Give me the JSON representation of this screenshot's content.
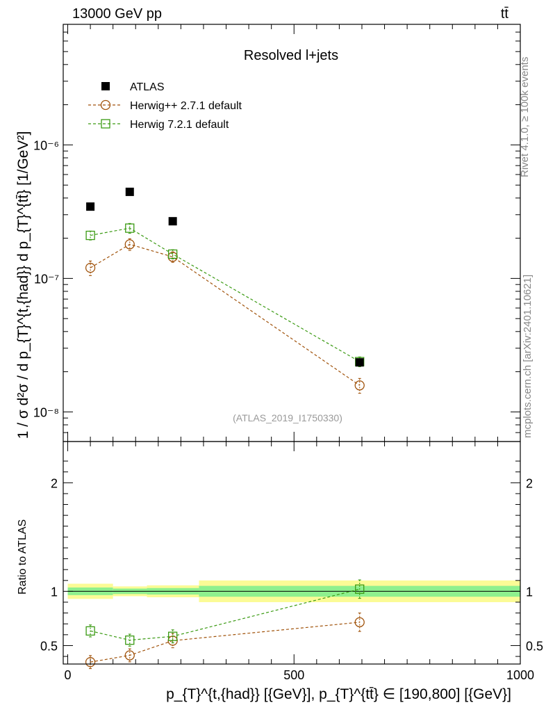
{
  "header": {
    "left": "13000 GeV pp",
    "right": "tt̄"
  },
  "side_labels": {
    "rivet": "Rivet 4.1.0, ≥ 100k events",
    "mcplots": "mcplots.cern.ch [arXiv:2401.10621]"
  },
  "colors": {
    "atlas": "#000000",
    "herwigpp": "#a0520a",
    "herwig7": "#3a9a12",
    "band_inner": "#8ef08e",
    "band_outer": "#fbfb96"
  },
  "chart_data": [
    {
      "type": "scatter",
      "title": "Resolved l+jets",
      "analysis_label": "(ATLAS_2019_I1750330)",
      "yscale": "log",
      "ylim": [
        6e-09,
        8e-06
      ],
      "xlim": [
        -10,
        1000
      ],
      "ylabel": "1 / σ d²σ / d p_{T}^{t,{had}} d p_{T}^{tt̄} [1/GeV²]",
      "yticks": [
        {
          "value": 1e-08,
          "label": "10⁻⁸"
        },
        {
          "value": 1e-07,
          "label": "10⁻⁷"
        },
        {
          "value": 1e-06,
          "label": "10⁻⁶"
        }
      ],
      "series": [
        {
          "name": "ATLAS",
          "marker": "filled-square",
          "x": [
            50,
            137,
            232,
            645
          ],
          "y": [
            3.45e-07,
            4.45e-07,
            2.68e-07,
            2.35e-08
          ],
          "yerr": [
            0,
            0,
            0,
            0
          ]
        },
        {
          "name": "Herwig++ 2.7.1 default",
          "marker": "open-circle",
          "x": [
            50,
            137,
            232,
            645
          ],
          "y": [
            1.2e-07,
            1.8e-07,
            1.45e-07,
            1.58e-08
          ],
          "yerr": [
            1.5e-08,
            1.8e-08,
            1.3e-08,
            2e-09
          ]
        },
        {
          "name": "Herwig 7.2.1 default",
          "marker": "open-square",
          "x": [
            50,
            137,
            232,
            645
          ],
          "y": [
            2.1e-07,
            2.38e-07,
            1.52e-07,
            2.38e-08
          ],
          "yerr": [
            1.6e-08,
            2e-08,
            1.2e-08,
            2e-09
          ]
        }
      ]
    },
    {
      "type": "scatter",
      "ylabel": "Ratio to ATLAS",
      "xlabel": "p_{T}^{t,{had}} [{GeV}], p_{T}^{tt̄} ∈ [190,800] [{GeV}]",
      "xlim": [
        -10,
        1000
      ],
      "ylim": [
        0.33,
        2.38
      ],
      "yticks": [
        {
          "value": 0.5,
          "label": "0.5"
        },
        {
          "value": 1,
          "label": "1"
        },
        {
          "value": 2,
          "label": "2"
        }
      ],
      "xticks": [
        {
          "value": 0,
          "label": "0"
        },
        {
          "value": 500,
          "label": "500"
        },
        {
          "value": 1000,
          "label": "1000"
        }
      ],
      "bands": [
        {
          "x0": 0,
          "x1": 100,
          "inner": [
            0.965,
            1.035
          ],
          "outer": [
            0.93,
            1.07
          ]
        },
        {
          "x0": 100,
          "x1": 175,
          "inner": [
            0.975,
            1.025
          ],
          "outer": [
            0.955,
            1.045
          ]
        },
        {
          "x0": 175,
          "x1": 290,
          "inner": [
            0.97,
            1.03
          ],
          "outer": [
            0.945,
            1.055
          ]
        },
        {
          "x0": 290,
          "x1": 1000,
          "inner": [
            0.95,
            1.05
          ],
          "outer": [
            0.9,
            1.1
          ]
        }
      ],
      "series": [
        {
          "name": "Herwig++ 2.7.1 default",
          "marker": "open-circle",
          "x": [
            50,
            137,
            232,
            645
          ],
          "y": [
            0.348,
            0.41,
            0.545,
            0.715
          ],
          "yerr": [
            0.06,
            0.06,
            0.065,
            0.085
          ]
        },
        {
          "name": "Herwig 7.2.1 default",
          "marker": "open-square",
          "x": [
            50,
            137,
            232,
            645
          ],
          "y": [
            0.635,
            0.55,
            0.585,
            1.02
          ],
          "yerr": [
            0.055,
            0.055,
            0.06,
            0.085
          ]
        }
      ]
    }
  ]
}
